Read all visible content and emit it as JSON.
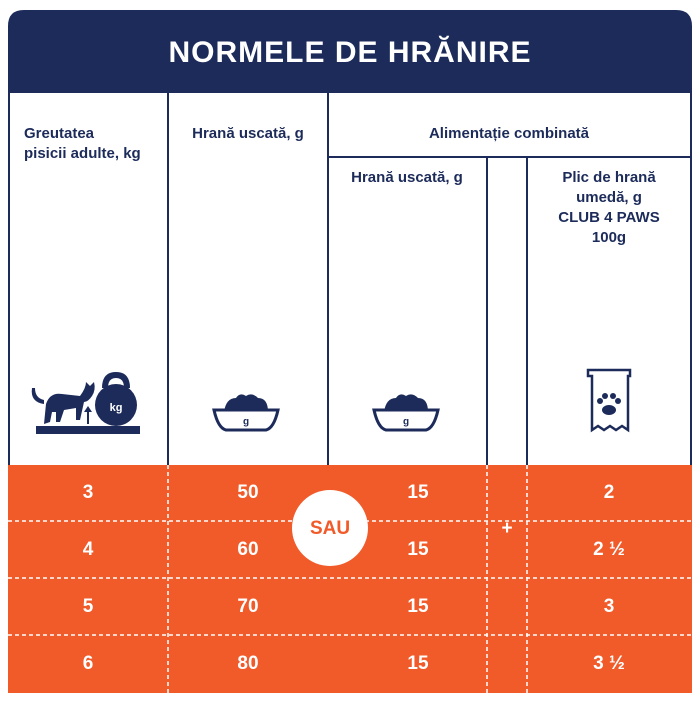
{
  "header": {
    "title": "NORMELE DE HRĂNIRE"
  },
  "table": {
    "columns": {
      "weight": [
        "Greutatea",
        "pisicii adulte, kg"
      ],
      "dry": "Hrană uscată, g",
      "combined": "Alimentație combinată",
      "combined_dry": "Hrană uscată, g",
      "wet": [
        "Plic de hrană",
        "umedă, g",
        "CLUB 4 PAWS",
        "100g"
      ]
    },
    "icons": {
      "kettlebell": "kg",
      "bowl": "g"
    },
    "or_label": "SAU",
    "plus_label": "+",
    "rows": [
      [
        "3",
        "50",
        "15",
        "2"
      ],
      [
        "4",
        "60",
        "15",
        "2 ½"
      ],
      [
        "5",
        "70",
        "15",
        "3"
      ],
      [
        "6",
        "80",
        "15",
        "3 ½"
      ]
    ]
  }
}
